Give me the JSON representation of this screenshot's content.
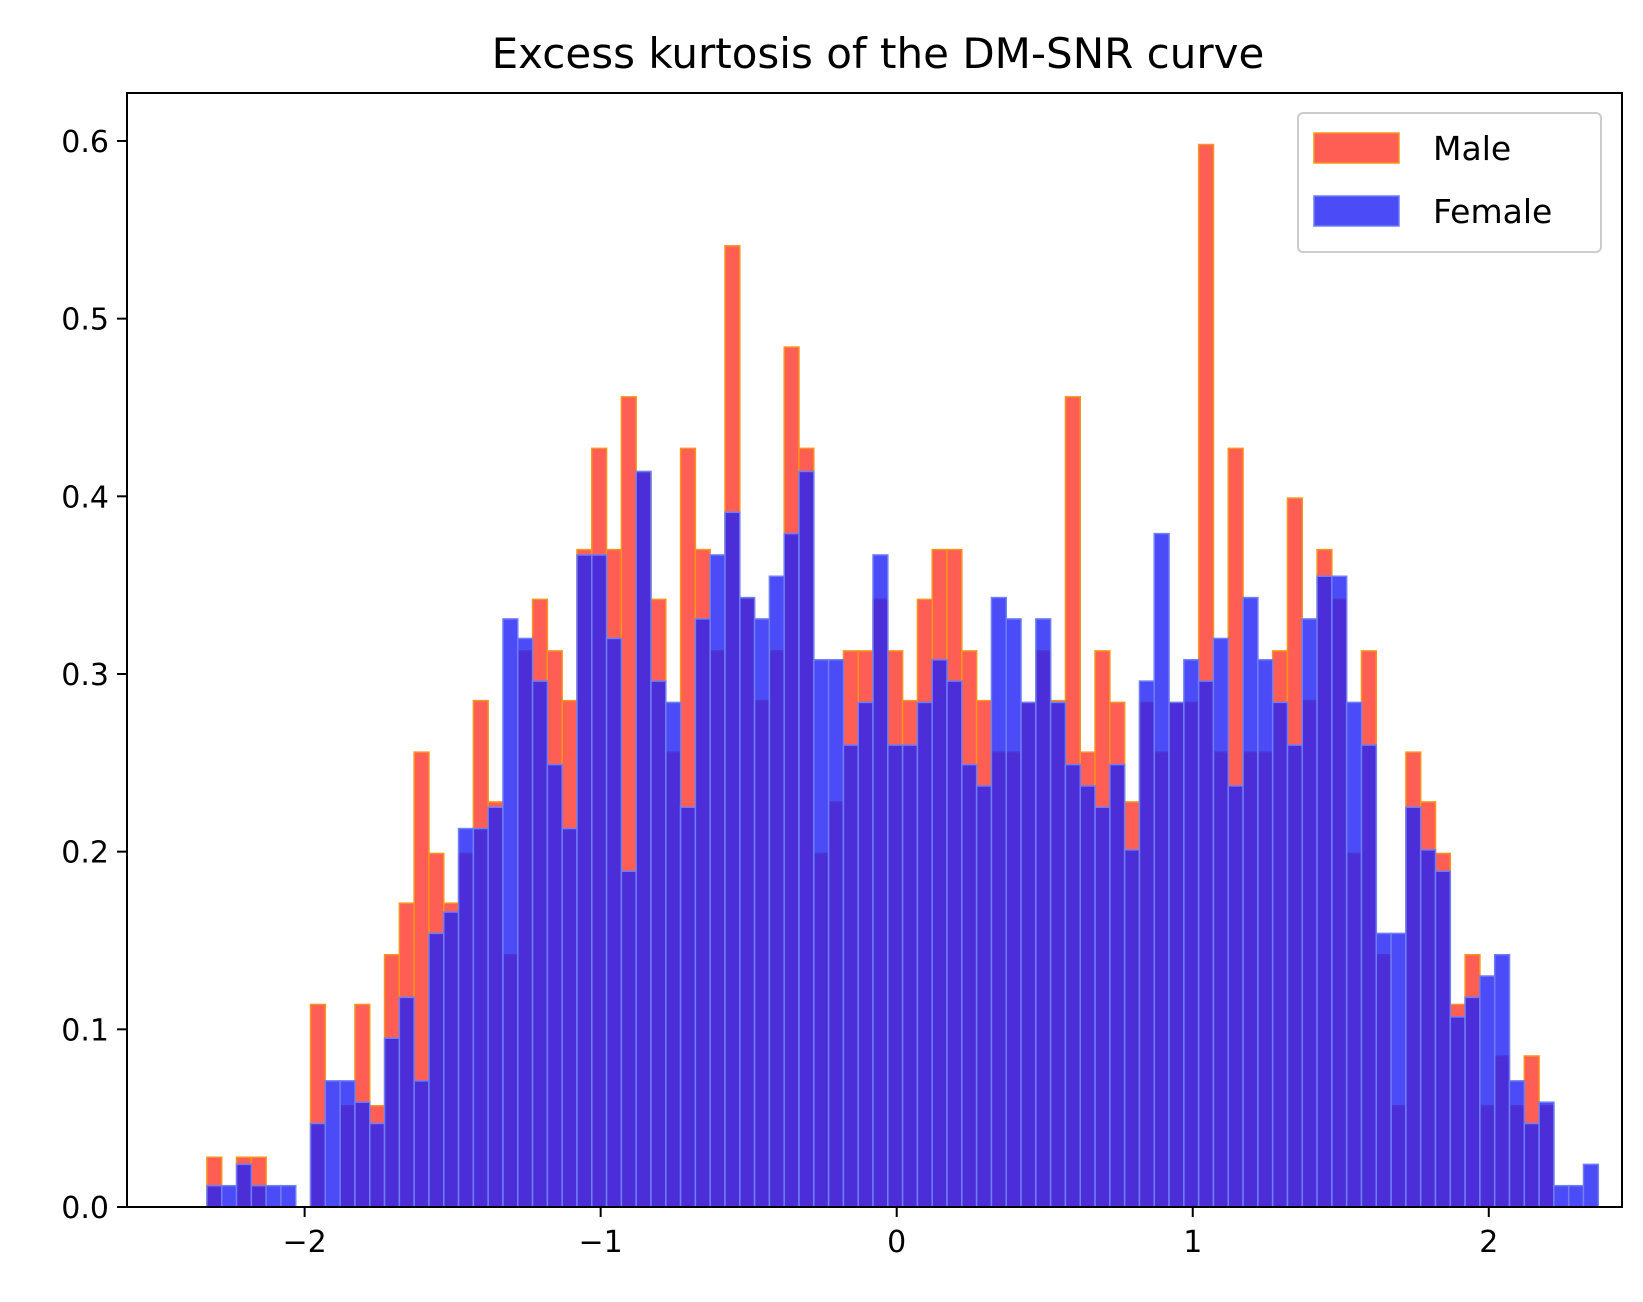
{
  "chart_data": {
    "type": "bar",
    "title": "Excess kurtosis of the DM-SNR curve",
    "xlabel": "",
    "ylabel": "",
    "xlim": [
      -2.6,
      2.45
    ],
    "ylim": [
      0,
      0.627
    ],
    "x_ticks": [
      -2,
      -1,
      0,
      1,
      2
    ],
    "y_ticks": [
      0.0,
      0.1,
      0.2,
      0.3,
      0.4,
      0.5,
      0.6
    ],
    "x_tick_labels": [
      "−2",
      "−1",
      "0",
      "1",
      "2"
    ],
    "y_tick_labels": [
      "0.0",
      "0.1",
      "0.2",
      "0.3",
      "0.4",
      "0.5",
      "0.6"
    ],
    "grid": false,
    "legend_position": "top-right",
    "bin_start": -2.33,
    "bin_width": 0.05,
    "series": [
      {
        "name": "Male",
        "color": "#ff3b30",
        "edge_color": "#f7941d",
        "values": [
          0.028,
          0,
          0.028,
          0.028,
          0,
          0,
          0,
          0.114,
          0,
          0.057,
          0.114,
          0.057,
          0.142,
          0.171,
          0.256,
          0.199,
          0.171,
          0.199,
          0.285,
          0.228,
          0.142,
          0.313,
          0.342,
          0.313,
          0.285,
          0.37,
          0.427,
          0.37,
          0.456,
          0.413,
          0.342,
          0.256,
          0.427,
          0.37,
          0.313,
          0.541,
          0.342,
          0.285,
          0.313,
          0.484,
          0.427,
          0.199,
          0.228,
          0.313,
          0.313,
          0.342,
          0.313,
          0.285,
          0.342,
          0.37,
          0.37,
          0.313,
          0.285,
          0.256,
          0.256,
          0.284,
          0.313,
          0.285,
          0.456,
          0.256,
          0.313,
          0.284,
          0.228,
          0.284,
          0.256,
          0.284,
          0.284,
          0.598,
          0.256,
          0.427,
          0.256,
          0.256,
          0.313,
          0.399,
          0.285,
          0.37,
          0.342,
          0.199,
          0.313,
          0.142,
          0.057,
          0.256,
          0.228,
          0.199,
          0.114,
          0.142,
          0.057,
          0.085,
          0.057,
          0.085,
          0.057,
          0,
          0,
          0
        ]
      },
      {
        "name": "Female",
        "color": "#2323f5",
        "edge_color": "#6e7ef5",
        "values": [
          0.012,
          0.012,
          0.024,
          0.012,
          0.012,
          0.012,
          0,
          0.047,
          0.071,
          0.071,
          0.059,
          0.047,
          0.095,
          0.118,
          0.071,
          0.154,
          0.166,
          0.213,
          0.213,
          0.225,
          0.331,
          0.32,
          0.296,
          0.249,
          0.213,
          0.367,
          0.367,
          0.32,
          0.189,
          0.414,
          0.296,
          0.284,
          0.225,
          0.331,
          0.367,
          0.391,
          0.343,
          0.331,
          0.355,
          0.379,
          0.414,
          0.308,
          0.308,
          0.26,
          0.284,
          0.367,
          0.26,
          0.26,
          0.284,
          0.308,
          0.296,
          0.249,
          0.237,
          0.343,
          0.331,
          0.284,
          0.331,
          0.284,
          0.249,
          0.237,
          0.225,
          0.249,
          0.201,
          0.296,
          0.379,
          0.284,
          0.308,
          0.296,
          0.32,
          0.237,
          0.343,
          0.308,
          0.284,
          0.26,
          0.331,
          0.355,
          0.355,
          0.284,
          0.26,
          0.154,
          0.154,
          0.225,
          0.201,
          0.189,
          0.107,
          0.118,
          0.13,
          0.142,
          0.071,
          0.047,
          0.059,
          0.012,
          0.012,
          0.024
        ]
      }
    ]
  }
}
